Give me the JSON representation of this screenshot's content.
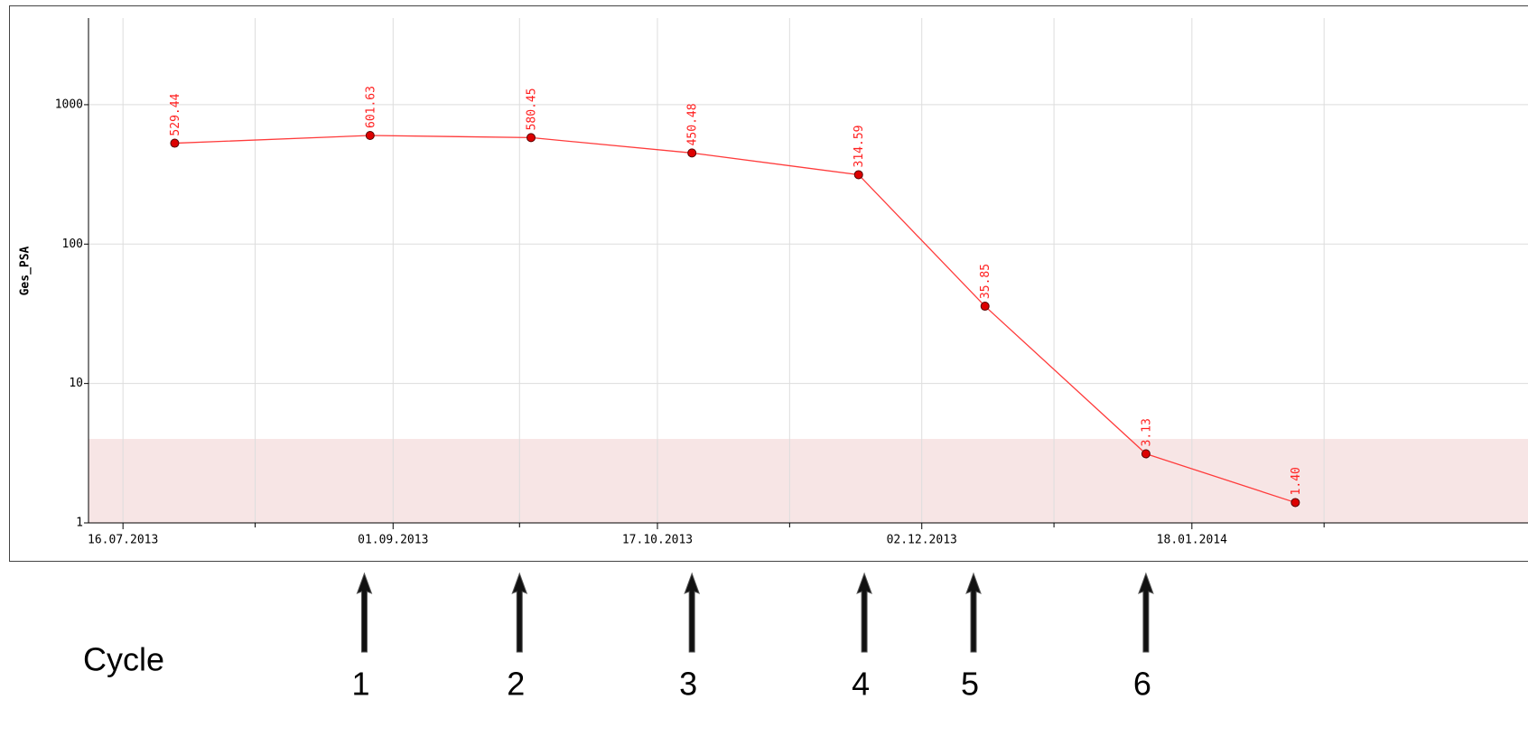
{
  "chart_data": {
    "type": "line",
    "y_label": "Ges_PSA",
    "x": [
      "2013-07-25",
      "2013-08-28",
      "2013-09-25",
      "2013-10-23",
      "2013-11-21",
      "2013-12-13",
      "2014-01-10",
      "2014-02-05"
    ],
    "values": [
      529.44,
      601.63,
      580.45,
      450.48,
      314.59,
      35.85,
      3.13,
      1.4
    ],
    "value_labels": [
      "529.44",
      "601.63",
      "580.45",
      "450.48",
      "314.59",
      "35.85",
      "3.13",
      "1.40"
    ],
    "color": "#ff3b3b",
    "marker_color": "#dd0000",
    "log_y": true,
    "ylim": [
      1,
      4000
    ],
    "yticks": [
      1,
      10,
      100,
      1000
    ],
    "xlim": [
      "2013-07-10",
      "2014-02-26"
    ],
    "xticks": [
      {
        "value": "2013-07-16",
        "label": "16.07.2013"
      },
      {
        "value": "2013-09-01",
        "label": "01.09.2013"
      },
      {
        "value": "2013-10-17",
        "label": "17.10.2013"
      },
      {
        "value": "2013-12-02",
        "label": "02.12.2013"
      },
      {
        "value": "2014-01-18",
        "label": "18.01.2014"
      }
    ],
    "x_minor_ticks": [
      "2013-08-08",
      "2013-09-23",
      "2013-11-09",
      "2013-12-25",
      "2014-02-10"
    ],
    "grid": true,
    "reference_band": {
      "range": [
        1,
        4
      ],
      "color": "#f7e5e5"
    },
    "cycles": {
      "label": "Cycle",
      "x": [
        "2013-08-27",
        "2013-09-23",
        "2013-10-23",
        "2013-11-22",
        "2013-12-11",
        "2014-01-10"
      ],
      "labels": [
        "1",
        "2",
        "3",
        "4",
        "5",
        "6"
      ]
    }
  }
}
